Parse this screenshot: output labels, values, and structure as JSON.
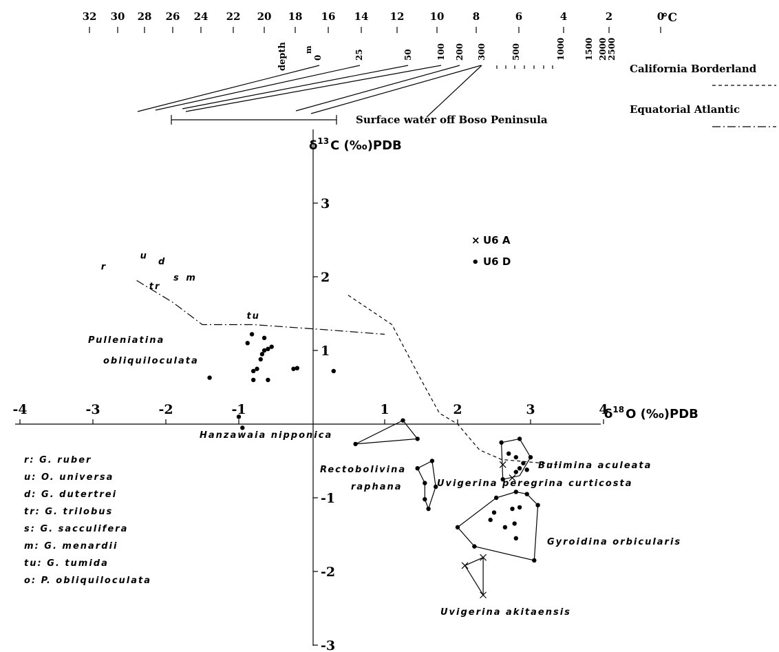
{
  "temperature_scale": {
    "ticks": [
      "32",
      "30",
      "28",
      "26",
      "24",
      "22",
      "20",
      "18",
      "16",
      "14",
      "12",
      "10",
      "8",
      "6",
      "4",
      "2",
      "0"
    ],
    "unit": "°C"
  },
  "depth_scale": {
    "label": "depth",
    "unit": "m",
    "ticks": [
      "0",
      "25",
      "50",
      "100",
      "200",
      "300",
      "500",
      "1000",
      "1500",
      "2000",
      "2500"
    ]
  },
  "references": {
    "california": "California Borderland",
    "equatorial": "Equatorial Atlantic",
    "boso": "Surface water off Boso Peninsula"
  },
  "legend": {
    "u6a_marker": "×",
    "u6a_label": "U6 A",
    "u6d_marker": "•",
    "u6d_label": "U6 D"
  },
  "species_key": {
    "r": "r: G. ruber",
    "u": "u: O. universa",
    "d": "d: G. dutertrei",
    "tr": "tr: G. trilobus",
    "s": "s: G. sacculifera",
    "m": "m: G. menardii",
    "tu": "tu: G. tumida",
    "o": "o: P. obliquiloculata"
  },
  "chart_data": {
    "type": "scatter",
    "xlabel_prefix": "δ",
    "xlabel_sup": "18",
    "xlabel_rest": "O (‰)PDB",
    "ylabel_prefix": "δ",
    "ylabel_sup": "13",
    "ylabel_rest": "C (‰)PDB",
    "xlim": [
      -4,
      4
    ],
    "ylim": [
      -3,
      4
    ],
    "x_ticks": [
      "-4",
      "-3",
      "-2",
      "-1",
      "1",
      "2",
      "3",
      "4"
    ],
    "y_ticks": [
      "3",
      "2",
      "1",
      "-1",
      "-2",
      "-3"
    ],
    "planktonic_letters": [
      {
        "t": "r",
        "x": -2.85,
        "y": 2.1
      },
      {
        "t": "u",
        "x": -2.3,
        "y": 2.25
      },
      {
        "t": "d",
        "x": -2.05,
        "y": 2.17
      },
      {
        "t": "tr",
        "x": -2.15,
        "y": 1.83
      },
      {
        "t": "s",
        "x": -1.85,
        "y": 1.95
      },
      {
        "t": "m",
        "x": -1.65,
        "y": 1.95
      },
      {
        "t": "tu",
        "x": -0.8,
        "y": 1.43
      }
    ],
    "pulleniatina": {
      "label_line1": "Pulleniatina",
      "label_line2": "obliquiloculata",
      "points": [
        [
          -0.88,
          1.1
        ],
        [
          -0.82,
          1.22
        ],
        [
          -0.65,
          1.17
        ],
        [
          -0.55,
          1.05
        ],
        [
          -0.6,
          1.02
        ],
        [
          -0.65,
          1.0
        ],
        [
          -0.68,
          0.95
        ],
        [
          -0.7,
          0.88
        ],
        [
          -0.8,
          0.72
        ],
        [
          -0.75,
          0.75
        ],
        [
          -0.8,
          0.6
        ],
        [
          -0.6,
          0.6
        ],
        [
          -0.25,
          0.75
        ],
        [
          -0.2,
          0.76
        ],
        [
          0.3,
          0.72
        ],
        [
          -1.4,
          0.63
        ],
        [
          -1.0,
          0.1
        ],
        [
          -0.95,
          -0.05
        ]
      ]
    },
    "groups": [
      {
        "name": "Hanzawaia nipponica",
        "marker": "dot",
        "points": [
          [
            0.6,
            -0.27
          ],
          [
            1.25,
            0.05
          ],
          [
            1.45,
            -0.2
          ]
        ],
        "hull": [
          [
            0.6,
            -0.27
          ],
          [
            1.25,
            0.05
          ],
          [
            1.45,
            -0.2
          ]
        ]
      },
      {
        "name": "Rectobolivina raphana",
        "marker": "dot",
        "points": [
          [
            1.45,
            -0.6
          ],
          [
            1.65,
            -0.5
          ],
          [
            1.55,
            -0.8
          ],
          [
            1.7,
            -0.85
          ],
          [
            1.55,
            -1.02
          ],
          [
            1.6,
            -1.15
          ]
        ],
        "hull": [
          [
            1.45,
            -0.6
          ],
          [
            1.65,
            -0.5
          ],
          [
            1.7,
            -0.85
          ],
          [
            1.6,
            -1.15
          ],
          [
            1.55,
            -1.02
          ],
          [
            1.55,
            -0.8
          ]
        ]
      },
      {
        "name": "Bulimina aculeata",
        "marker": "dot",
        "points": [
          [
            2.6,
            -0.25
          ],
          [
            2.85,
            -0.2
          ],
          [
            3.0,
            -0.45
          ],
          [
            2.9,
            -0.53
          ],
          [
            2.95,
            -0.62
          ],
          [
            2.85,
            -0.6
          ],
          [
            2.8,
            -0.65
          ],
          [
            2.62,
            -0.75
          ],
          [
            2.7,
            -0.4
          ],
          [
            2.8,
            -0.45
          ]
        ],
        "hull": [
          [
            2.6,
            -0.25
          ],
          [
            2.85,
            -0.2
          ],
          [
            3.0,
            -0.45
          ],
          [
            2.85,
            -0.7
          ],
          [
            2.62,
            -0.75
          ]
        ]
      },
      {
        "name": "Bulimina aculeata (U6 A)",
        "marker": "cross",
        "points": [
          [
            2.62,
            -0.55
          ],
          [
            2.75,
            -0.73
          ]
        ],
        "hull": []
      },
      {
        "name": "Uvigerina peregrina curticosta",
        "marker": "none",
        "points": [],
        "hull": []
      },
      {
        "name": "Gyroidina orbicularis",
        "marker": "dot",
        "points": [
          [
            2.0,
            -1.4
          ],
          [
            2.23,
            -1.66
          ],
          [
            2.5,
            -1.2
          ],
          [
            2.53,
            -1.0
          ],
          [
            2.8,
            -0.92
          ],
          [
            2.95,
            -0.95
          ],
          [
            3.1,
            -1.1
          ],
          [
            3.05,
            -1.85
          ],
          [
            2.78,
            -1.35
          ],
          [
            2.65,
            -1.4
          ],
          [
            2.8,
            -1.55
          ],
          [
            2.45,
            -1.3
          ],
          [
            2.85,
            -1.13
          ],
          [
            2.75,
            -1.15
          ]
        ],
        "hull": [
          [
            2.0,
            -1.4
          ],
          [
            2.53,
            -1.0
          ],
          [
            2.8,
            -0.92
          ],
          [
            2.95,
            -0.95
          ],
          [
            3.1,
            -1.1
          ],
          [
            3.05,
            -1.85
          ],
          [
            2.23,
            -1.66
          ]
        ]
      },
      {
        "name": "Uvigerina akitaensis",
        "marker": "cross",
        "points": [
          [
            2.1,
            -1.92
          ],
          [
            2.35,
            -1.81
          ],
          [
            2.35,
            -2.32
          ]
        ],
        "hull": [
          [
            2.1,
            -1.92
          ],
          [
            2.35,
            -1.81
          ],
          [
            2.35,
            -2.32
          ]
        ]
      }
    ],
    "reference_curves": [
      {
        "name": "California Borderland",
        "style": "dashed",
        "points": [
          [
            0.5,
            1.75
          ],
          [
            1.1,
            1.35
          ],
          [
            1.5,
            0.6
          ],
          [
            1.75,
            0.15
          ],
          [
            2.0,
            0.0
          ],
          [
            2.3,
            -0.35
          ],
          [
            2.6,
            -0.48
          ],
          [
            3.4,
            -0.55
          ]
        ]
      },
      {
        "name": "Equatorial Atlantic",
        "style": "dashdot",
        "points": [
          [
            -2.4,
            1.95
          ],
          [
            -1.9,
            1.65
          ],
          [
            -1.5,
            1.35
          ],
          [
            -0.8,
            1.35
          ],
          [
            0.2,
            1.28
          ],
          [
            1.0,
            1.22
          ]
        ]
      }
    ]
  }
}
